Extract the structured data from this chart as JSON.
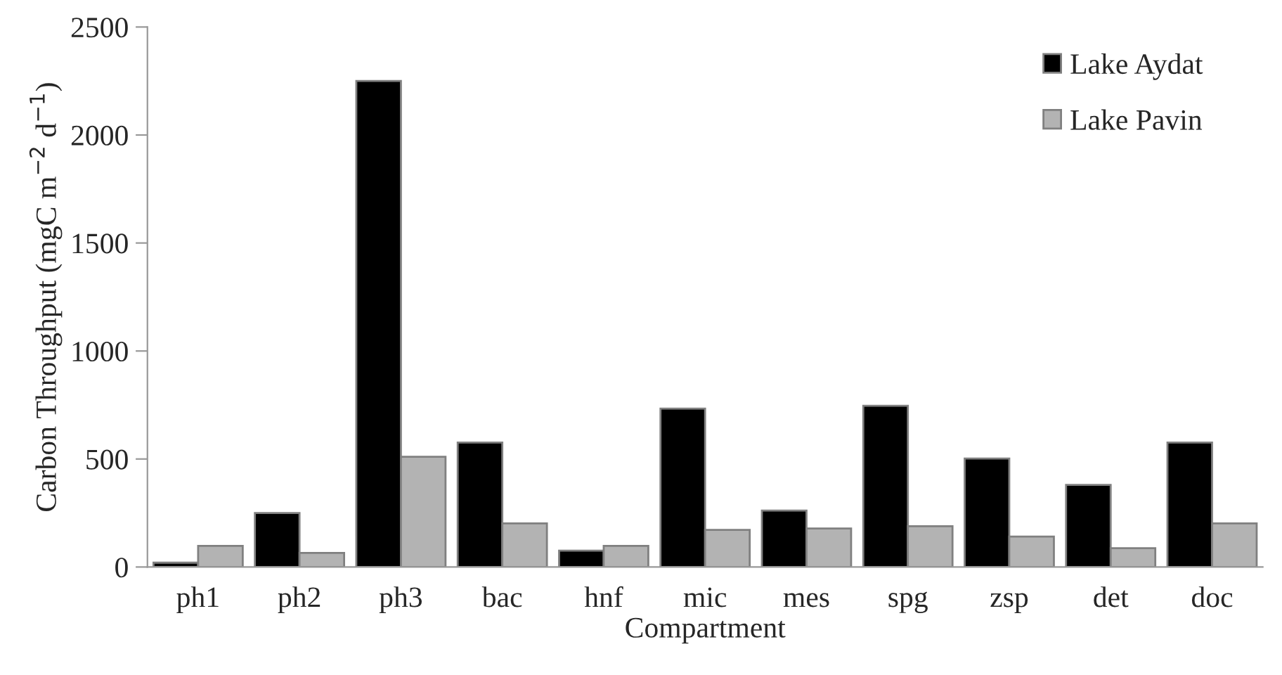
{
  "chart_data": {
    "type": "bar",
    "xlabel": "Compartment",
    "ylabel": "Carbon Throughput (mgC m$^{−2}$ d$^{−1}$)",
    "categories": [
      "ph1",
      "ph2",
      "ph3",
      "bac",
      "hnf",
      "mic",
      "mes",
      "spg",
      "zsp",
      "det",
      "doc"
    ],
    "series": [
      {
        "name": "Lake Aydat",
        "color": "#000000",
        "values": [
          20,
          250,
          2250,
          576,
          76,
          733,
          261,
          746,
          502,
          380,
          576
        ]
      },
      {
        "name": "Lake Pavin",
        "color": "#b3b3b3",
        "values": [
          98,
          65,
          510,
          202,
          98,
          172,
          178,
          189,
          141,
          87,
          202
        ]
      }
    ],
    "ylim": [
      0,
      2500
    ],
    "yticks": [
      0,
      500,
      1000,
      1500,
      2000,
      2500
    ],
    "grid": false,
    "legend": "top right"
  }
}
